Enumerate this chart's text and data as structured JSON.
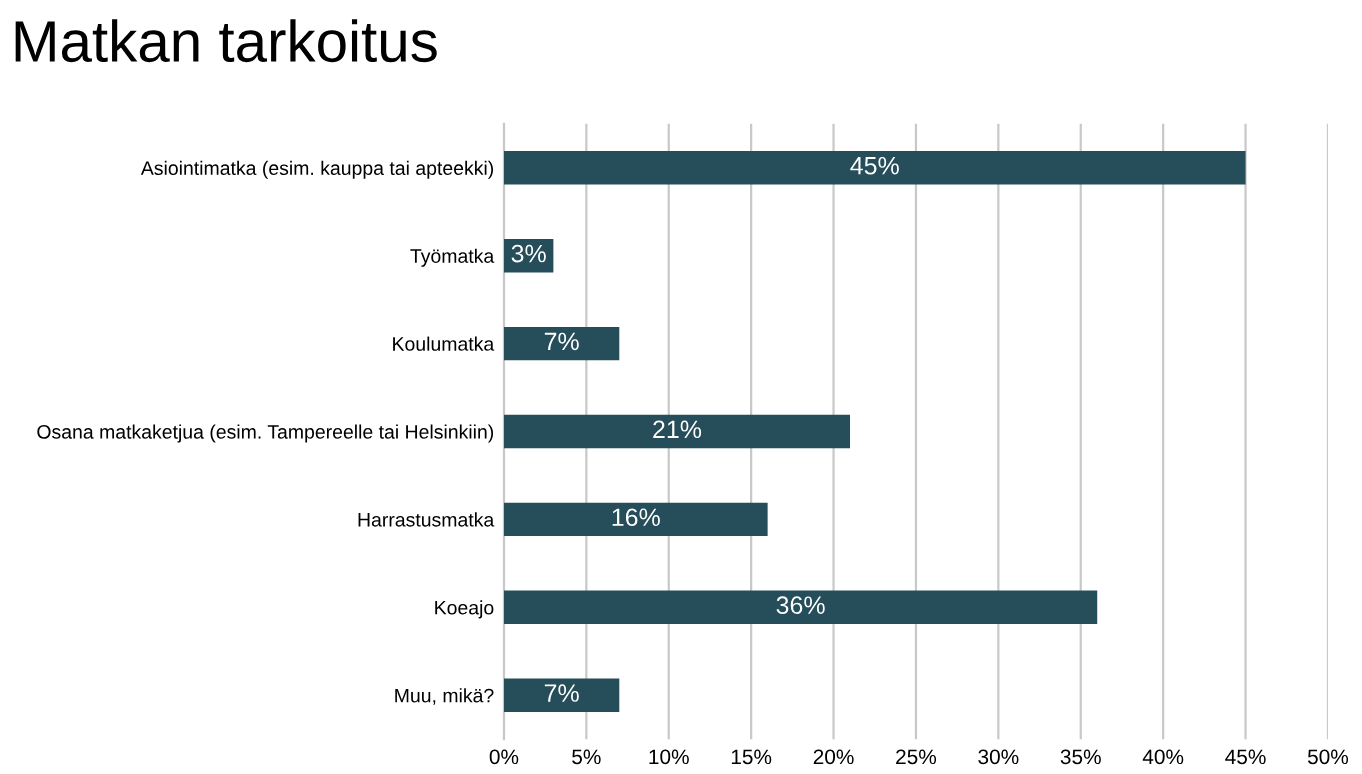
{
  "chart_data": {
    "type": "bar",
    "orientation": "horizontal",
    "title": "Matkan tarkoitus",
    "categories": [
      "Asiointimatka (esim. kauppa tai apteekki)",
      "Työmatka",
      "Koulumatka",
      "Osana matkaketjua (esim. Tampereelle tai Helsinkiin)",
      "Harrastusmatka",
      "Koeajo",
      "Muu, mikä?"
    ],
    "values": [
      45,
      3,
      7,
      21,
      16,
      36,
      7
    ],
    "value_labels": [
      "45%",
      "3%",
      "7%",
      "21%",
      "16%",
      "36%",
      "7%"
    ],
    "color": "#254d5a",
    "xlim": [
      0,
      50
    ],
    "xticks": [
      {
        "value": 0,
        "label": "0%"
      },
      {
        "value": 5,
        "label": "5%"
      },
      {
        "value": 10,
        "label": "10%"
      },
      {
        "value": 15,
        "label": "15%"
      },
      {
        "value": 20,
        "label": "20%"
      },
      {
        "value": 25,
        "label": "25%"
      },
      {
        "value": 30,
        "label": "30%"
      },
      {
        "value": 35,
        "label": "35%"
      },
      {
        "value": 40,
        "label": "40%"
      },
      {
        "value": 45,
        "label": "45%"
      },
      {
        "value": 50,
        "label": "50%"
      }
    ],
    "grid": "x",
    "legend": false
  }
}
